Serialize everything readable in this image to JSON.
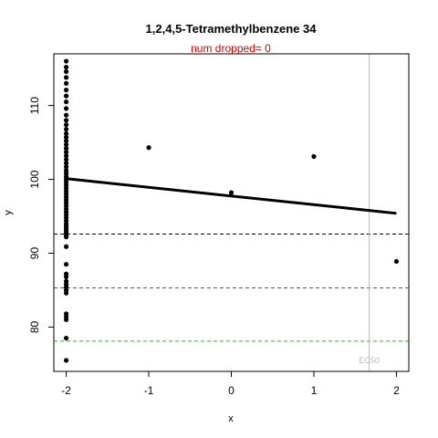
{
  "chart_data": {
    "type": "scatter",
    "title": "1,2,4,5-Tetramethylbenzene 34",
    "subtitle": "num dropped= 0",
    "xlabel": "x",
    "ylabel": "y",
    "xlim": [
      -2.15,
      2.15
    ],
    "ylim": [
      74,
      117
    ],
    "x_ticks": [
      -2,
      -1,
      0,
      1,
      2
    ],
    "y_ticks": [
      80,
      90,
      100,
      110
    ],
    "grid": false,
    "points": {
      "x": [
        -2,
        -2,
        -2,
        -2,
        -2,
        -2,
        -2,
        -2,
        -2,
        -2,
        -2,
        -2,
        -2,
        -2,
        -2,
        -2,
        -2,
        -2,
        -2,
        -2,
        -2,
        -2,
        -2,
        -2,
        -2,
        -2,
        -2,
        -2,
        -2,
        -2,
        -2,
        -2,
        -2,
        -2,
        -2,
        -2,
        -2,
        -2,
        -2,
        -2,
        -2,
        -2,
        -2,
        -2,
        -2,
        -2,
        -2,
        -2,
        -2,
        -2,
        -2,
        -2,
        -2,
        -2,
        -2,
        -2,
        -2,
        -2,
        -2,
        -2,
        -2,
        -2,
        -1,
        0,
        1,
        2
      ],
      "y": [
        116,
        115.2,
        114.6,
        113.8,
        113.0,
        112.1,
        111.3,
        110.5,
        109.6,
        108.7,
        108.0,
        107.4,
        106.8,
        106.2,
        105.7,
        105.2,
        104.7,
        104.2,
        103.7,
        103.2,
        102.7,
        102.2,
        101.7,
        101.2,
        100.8,
        100.4,
        100.0,
        99.6,
        99.2,
        98.8,
        98.4,
        98.0,
        97.6,
        97.2,
        96.8,
        96.4,
        96.0,
        95.6,
        95.2,
        94.8,
        94.4,
        94.0,
        93.7,
        93.4,
        93.1,
        92.8,
        92.5,
        92.2,
        90.9,
        88.5,
        87.2,
        86.8,
        86.2,
        85.8,
        85.4,
        85.0,
        84.6,
        81.8,
        81.4,
        81.0,
        78.5,
        75.5,
        104.3,
        98.2,
        103.1,
        88.9
      ]
    },
    "fit_line": {
      "x": [
        -2,
        2
      ],
      "y": [
        100.1,
        95.4
      ],
      "color": "#000000"
    },
    "hlines": [
      {
        "y": 92.6,
        "color": "#000000",
        "style": "dashed"
      },
      {
        "y": 85.3,
        "color": "#dd2222",
        "style": "dashed"
      },
      {
        "y": 78.1,
        "color": "#22bb22",
        "style": "dashed"
      }
    ],
    "vline": {
      "x": 1.67,
      "color": "#bbbbbb",
      "label": "EC50"
    },
    "colors": {
      "subtitle": "#dd0000",
      "annotation": "#bbbbbb"
    }
  }
}
